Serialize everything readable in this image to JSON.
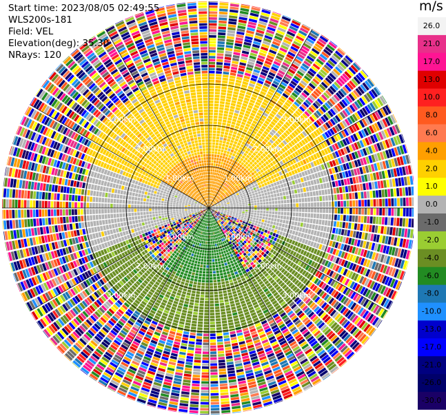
{
  "header": {
    "start_time": "Start time: 2023/08/05 02:49:55",
    "instrument": "WLS200s-181",
    "field": "Field: VEL",
    "elevation": "Elevation(deg): 35.30",
    "nrays": "NRays: 120"
  },
  "colorbar": {
    "unit": "m/s",
    "ticks": [
      "26.0",
      "21.0",
      "17.0",
      "13.0",
      "10.0",
      "8.0",
      "6.0",
      "4.0",
      "2.0",
      "1.0",
      "0.0",
      "-1.0",
      "-2.0",
      "-4.0",
      "-6.0",
      "-8.0",
      "-10.0",
      "-13.0",
      "-17.0",
      "-21.0",
      "-26.0",
      "-30.0"
    ],
    "colors": [
      "#f3f3f3",
      "#e8308a",
      "#ff1493",
      "#e00000",
      "#ff2020",
      "#ff5a1f",
      "#ff7a50",
      "#ff9f00",
      "#ffd000",
      "#ffff00",
      "#b3b3b3",
      "#6b6b6b",
      "#9acd32",
      "#6b8e23",
      "#228b22",
      "#1e78b4",
      "#1f90ff",
      "#0000cd",
      "#0000ff",
      "#000080",
      "#00006a",
      "#1a0066"
    ]
  },
  "chart_data": {
    "type": "heatmap",
    "subtype": "radar-ppi",
    "field": "VEL",
    "units": "m/s",
    "range_ring_labels": [
      "1.00km",
      "2.00km",
      "3.00km"
    ],
    "range_rings_km": [
      1,
      2,
      3
    ],
    "max_range_km": 5.0,
    "n_rays": 120,
    "value_range": [
      -30.0,
      26.0
    ],
    "sectors": [
      {
        "azimuth_range_deg": [
          300,
          60
        ],
        "range_km": [
          0,
          1.3
        ],
        "velocity_m_s": 4.0
      },
      {
        "azimuth_range_deg": [
          290,
          70
        ],
        "range_km": [
          1.3,
          3.2
        ],
        "velocity_m_s": 2.0
      },
      {
        "azimuth_range_deg": [
          60,
          110
        ],
        "range_km": [
          0,
          3.0
        ],
        "velocity_m_s": 0.0
      },
      {
        "azimuth_range_deg": [
          250,
          300
        ],
        "range_km": [
          0,
          3.0
        ],
        "velocity_m_s": 0.0
      },
      {
        "azimuth_range_deg": [
          150,
          220
        ],
        "range_km": [
          0,
          1.8
        ],
        "velocity_m_s": -6.0
      },
      {
        "azimuth_range_deg": [
          110,
          250
        ],
        "range_km": [
          1.8,
          3.0
        ],
        "velocity_m_s": -4.0
      },
      {
        "azimuth_range_deg": [
          0,
          360
        ],
        "range_km": [
          3.2,
          5.0
        ],
        "velocity_m_s": "noise"
      }
    ]
  }
}
